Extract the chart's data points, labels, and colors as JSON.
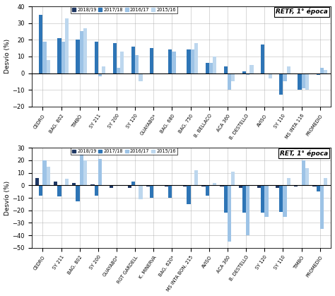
{
  "top_chart": {
    "title": "RETF, 1° época",
    "categories": [
      "CEDRO",
      "BAG. 802",
      "TIMBÓ",
      "SY 211",
      "SY 200",
      "SY 120",
      "GUAYABO*",
      "BAG. 680",
      "BAG. 750",
      "B. BELLACO",
      "ACA 360",
      "B. DESTELLO",
      "AVISO",
      "SY 110",
      "MS INTA 116",
      "PROMEDIO"
    ],
    "series": {
      "2018/19": [
        0,
        0,
        0,
        0,
        0,
        0,
        0,
        0,
        0,
        0,
        0,
        0,
        0,
        0,
        0,
        0
      ],
      "2017/18": [
        35,
        21,
        20,
        19,
        18,
        16,
        15,
        14,
        14,
        6,
        4,
        1,
        17,
        -13,
        -10,
        -1
      ],
      "2016/17": [
        19,
        19,
        25,
        -2,
        3,
        11,
        0,
        13,
        14,
        6,
        -10,
        -1,
        0,
        -5,
        -9,
        3
      ],
      "2015/16": [
        8,
        33,
        27,
        4,
        13,
        -5,
        0,
        0,
        18,
        10,
        -5,
        5,
        -3,
        4,
        -10,
        2
      ]
    },
    "ylim": [
      -20,
      40
    ],
    "yticks": [
      -20,
      -10,
      0,
      10,
      20,
      30,
      40
    ],
    "ylabel": "Desvío (%)"
  },
  "bottom_chart": {
    "title": "RET, 1° época",
    "categories": [
      "CEDRO",
      "SY 211",
      "BAG. 802",
      "SY 200",
      "GUAYABO*",
      "RGT GARDELL",
      "K. MINERVA",
      "BAG. 620*",
      "MS INTA BON. 215",
      "AVISO",
      "ACA 360",
      "B. DESTELLO",
      "SY 120",
      "SY 110",
      "TIMBÓ",
      "PROMEDIO"
    ],
    "series": {
      "2018/19": [
        6,
        3,
        2,
        1,
        -2,
        -2,
        -1,
        -1,
        -1,
        -1,
        -1,
        -2,
        -2,
        -2,
        -1,
        -1
      ],
      "2017/18": [
        -8,
        -9,
        -13,
        -8,
        0,
        3,
        -10,
        -10,
        -15,
        -8,
        -22,
        -22,
        -22,
        -21,
        0,
        -5
      ],
      "2016/17": [
        20,
        0,
        25,
        21,
        0,
        0,
        0,
        0,
        0,
        0,
        -45,
        -40,
        -25,
        -25,
        20,
        -35
      ],
      "2015/16": [
        15,
        5,
        20,
        0,
        0,
        -11,
        0,
        0,
        12,
        2,
        11,
        0,
        0,
        6,
        14,
        6
      ]
    },
    "ylim": [
      -50,
      30
    ],
    "yticks": [
      -50,
      -40,
      -30,
      -20,
      -10,
      0,
      10,
      20,
      30
    ],
    "ylabel": "Desvío (%)"
  },
  "colors": {
    "2018/19": "#1f3864",
    "2017/18": "#2e75b6",
    "2016/17": "#9dc3e6",
    "2015/16": "#bdd7ee"
  },
  "legend_order": [
    "2018/19",
    "2017/18",
    "2016/17",
    "2015/16"
  ]
}
